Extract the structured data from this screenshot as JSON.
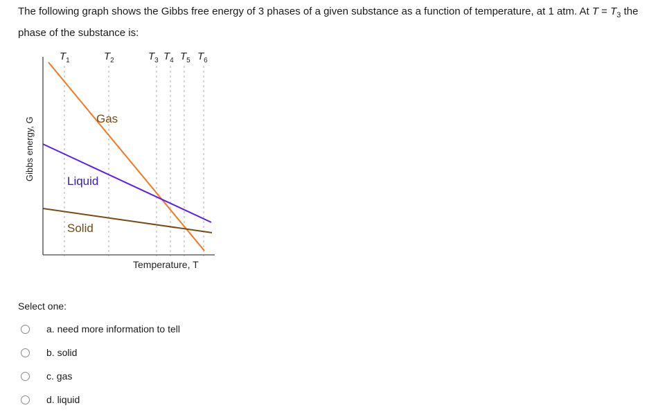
{
  "question": {
    "text_before": "The following graph shows the Gibbs free energy of 3 phases of a given substance as a function of temperature, at 1 atm. At ",
    "var": "T",
    "equals": " = ",
    "sub_var": "T",
    "sub_index": "3",
    "text_after": " the phase of the substance is:"
  },
  "graph": {
    "ylabel": "Gibbs energy, G",
    "xlabel": "Temperature, T",
    "t_labels": [
      {
        "base": "T",
        "sub": "1"
      },
      {
        "base": "T",
        "sub": "2"
      },
      {
        "base": "T",
        "sub": "3"
      },
      {
        "base": "T",
        "sub": "4"
      },
      {
        "base": "T",
        "sub": "5"
      },
      {
        "base": "T",
        "sub": "6"
      }
    ],
    "phase_labels": {
      "gas": "Gas",
      "liquid": "Liquid",
      "solid": "Solid"
    },
    "colors": {
      "gas": "#f07820",
      "liquid": "#5a1ee8",
      "solid": "#7a4a12",
      "axis": "#444444",
      "guide": "#aaaaaa"
    }
  },
  "select_label": "Select one:",
  "options": [
    {
      "label": "a. need more information to tell"
    },
    {
      "label": "b. solid"
    },
    {
      "label": "c. gas"
    },
    {
      "label": "d. liquid"
    }
  ]
}
